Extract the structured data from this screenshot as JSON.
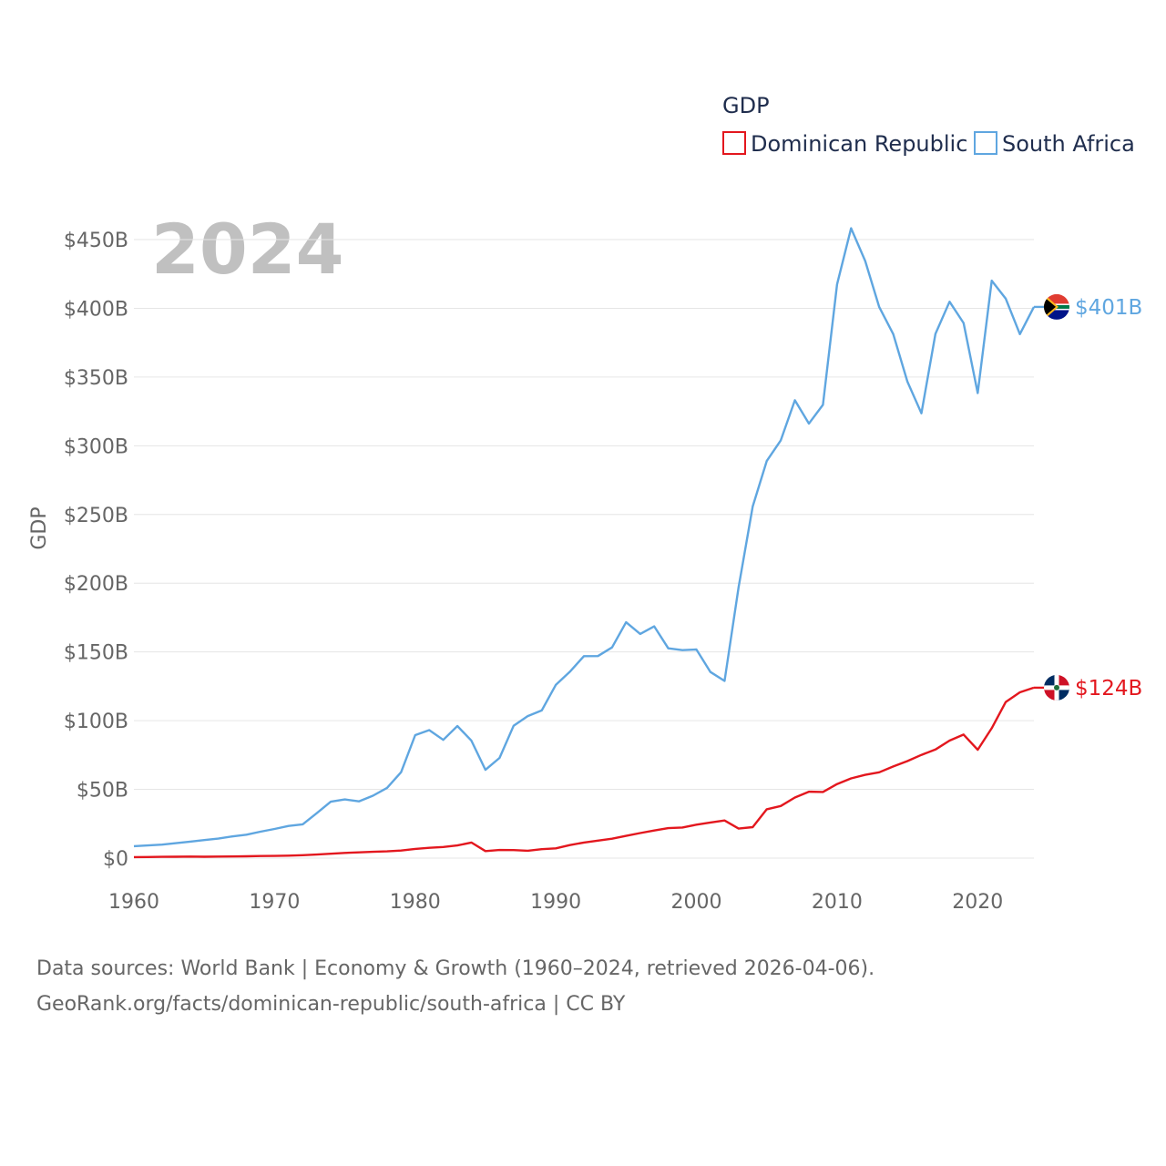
{
  "chart_data": {
    "type": "line",
    "title": "GDP",
    "year_label": "2024",
    "ylabel": "GDP",
    "xlabel": "",
    "xlim": [
      1960,
      2024
    ],
    "ylim": [
      0,
      450
    ],
    "y_unit": "billion USD",
    "yticks": [
      {
        "value": 0,
        "label": "$0"
      },
      {
        "value": 50,
        "label": "$50B"
      },
      {
        "value": 100,
        "label": "$100B"
      },
      {
        "value": 150,
        "label": "$150B"
      },
      {
        "value": 200,
        "label": "$200B"
      },
      {
        "value": 250,
        "label": "$250B"
      },
      {
        "value": 300,
        "label": "$300B"
      },
      {
        "value": 350,
        "label": "$350B"
      },
      {
        "value": 400,
        "label": "$400B"
      },
      {
        "value": 450,
        "label": "$450B"
      }
    ],
    "xticks": [
      {
        "value": 1960,
        "label": "1960"
      },
      {
        "value": 1970,
        "label": "1970"
      },
      {
        "value": 1980,
        "label": "1980"
      },
      {
        "value": 1990,
        "label": "1990"
      },
      {
        "value": 2000,
        "label": "2000"
      },
      {
        "value": 2010,
        "label": "2010"
      },
      {
        "value": 2020,
        "label": "2020"
      }
    ],
    "legend": {
      "title": "GDP",
      "position": "top-right"
    },
    "x": [
      1960,
      1961,
      1962,
      1963,
      1964,
      1965,
      1966,
      1967,
      1968,
      1969,
      1970,
      1971,
      1972,
      1973,
      1974,
      1975,
      1976,
      1977,
      1978,
      1979,
      1980,
      1981,
      1982,
      1983,
      1984,
      1985,
      1986,
      1987,
      1988,
      1989,
      1990,
      1991,
      1992,
      1993,
      1994,
      1995,
      1996,
      1997,
      1998,
      1999,
      2000,
      2001,
      2002,
      2003,
      2004,
      2005,
      2006,
      2007,
      2008,
      2009,
      2010,
      2011,
      2012,
      2013,
      2014,
      2015,
      2016,
      2017,
      2018,
      2019,
      2020,
      2021,
      2022,
      2023,
      2024
    ],
    "series": [
      {
        "name": "Dominican Republic",
        "color": "#e3171e",
        "end_label": "$124B",
        "values": [
          0.7,
          0.8,
          0.9,
          1.0,
          1.1,
          1.0,
          1.1,
          1.2,
          1.3,
          1.5,
          1.6,
          1.8,
          2.1,
          2.6,
          3.2,
          3.8,
          4.2,
          4.6,
          4.9,
          5.5,
          6.7,
          7.5,
          8.1,
          9.2,
          11.3,
          5.1,
          5.9,
          5.8,
          5.4,
          6.5,
          7.1,
          9.5,
          11.3,
          12.7,
          14.1,
          16.2,
          18.2,
          20.1,
          21.8,
          22.3,
          24.3,
          25.9,
          27.4,
          21.5,
          22.5,
          35.5,
          37.9,
          44.1,
          48.3,
          48.1,
          53.9,
          58.0,
          60.6,
          62.4,
          66.7,
          70.6,
          75.1,
          79.0,
          85.5,
          89.9,
          78.8,
          94.5,
          113.6,
          120.6,
          124.0
        ]
      },
      {
        "name": "South Africa",
        "color": "#5fa6e0",
        "end_label": "$401B",
        "values": [
          8.7,
          9.2,
          9.8,
          10.9,
          12.0,
          13.1,
          14.2,
          15.8,
          17.0,
          19.2,
          21.2,
          23.4,
          24.6,
          32.7,
          41.0,
          42.7,
          41.3,
          45.4,
          51.1,
          62.5,
          89.5,
          93.1,
          86.0,
          96.1,
          85.4,
          64.2,
          72.9,
          96.2,
          103.3,
          107.4,
          126.0,
          135.6,
          146.9,
          147.0,
          153.3,
          171.6,
          163.1,
          168.6,
          152.6,
          151.3,
          151.8,
          135.4,
          128.9,
          197.0,
          255.8,
          288.9,
          303.9,
          333.1,
          316.1,
          329.8,
          417.4,
          458.2,
          434.4,
          400.9,
          381.2,
          346.7,
          323.6,
          381.4,
          404.8,
          389.3,
          338.3,
          420.1,
          407.0,
          381.2,
          401.0
        ]
      }
    ]
  },
  "source": {
    "line1": "Data sources: World Bank | Economy & Growth (1960–2024, retrieved 2026-04-06).",
    "line2": "GeoRank.org/facts/dominican-republic/south-africa | CC BY"
  }
}
